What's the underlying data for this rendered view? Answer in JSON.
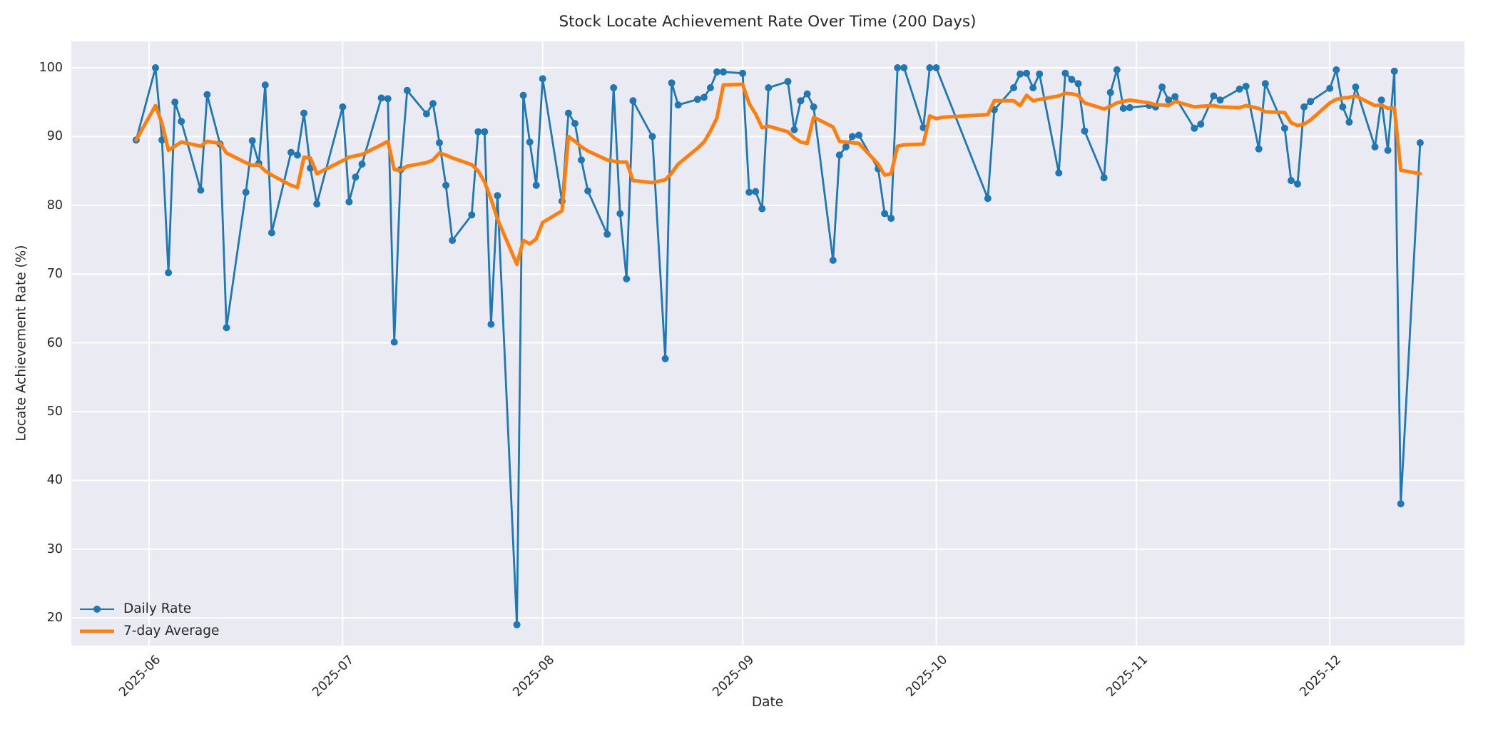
{
  "chart_data": {
    "type": "line",
    "title": "Stock Locate Achievement Rate Over Time (200 Days)",
    "xlabel": "Date",
    "ylabel": "Locate Achievement Rate (%)",
    "grid": true,
    "background_color": "#eaeaf2",
    "gridline_color": "#ffffff",
    "text_color": "#262626",
    "legend_position": "lower left",
    "ylim": [
      16,
      104
    ],
    "xlim_dates": [
      "2025-05-20",
      "2025-12-22"
    ],
    "y_ticks": [
      20,
      30,
      40,
      50,
      60,
      70,
      80,
      90,
      100
    ],
    "x_ticks": [
      {
        "label": "2025-06",
        "date": "2025-06-01"
      },
      {
        "label": "2025-07",
        "date": "2025-07-01"
      },
      {
        "label": "2025-08",
        "date": "2025-08-01"
      },
      {
        "label": "2025-09",
        "date": "2025-09-01"
      },
      {
        "label": "2025-10",
        "date": "2025-10-01"
      },
      {
        "label": "2025-11",
        "date": "2025-11-01"
      },
      {
        "label": "2025-12",
        "date": "2025-12-01"
      }
    ],
    "series": [
      {
        "name": "Daily Rate",
        "color": "#1f77b4",
        "linewidth": 2.8,
        "marker": "o",
        "marker_radius": 5,
        "points": [
          [
            "2025-05-30",
            89.5
          ],
          [
            "2025-06-02",
            100.0
          ],
          [
            "2025-06-03",
            89.5
          ],
          [
            "2025-06-04",
            70.2
          ],
          [
            "2025-06-05",
            95.0
          ],
          [
            "2025-06-06",
            92.2
          ],
          [
            "2025-06-09",
            82.2
          ],
          [
            "2025-06-10",
            96.1
          ],
          [
            "2025-06-12",
            88.9
          ],
          [
            "2025-06-13",
            62.2
          ],
          [
            "2025-06-16",
            81.9
          ],
          [
            "2025-06-17",
            89.4
          ],
          [
            "2025-06-18",
            86.1
          ],
          [
            "2025-06-19",
            97.5
          ],
          [
            "2025-06-20",
            76.0
          ],
          [
            "2025-06-23",
            87.7
          ],
          [
            "2025-06-24",
            87.3
          ],
          [
            "2025-06-25",
            93.4
          ],
          [
            "2025-06-26",
            85.4
          ],
          [
            "2025-06-27",
            80.2
          ],
          [
            "2025-07-01",
            94.3
          ],
          [
            "2025-07-02",
            80.5
          ],
          [
            "2025-07-03",
            84.1
          ],
          [
            "2025-07-04",
            86.0
          ],
          [
            "2025-07-07",
            95.6
          ],
          [
            "2025-07-08",
            95.5
          ],
          [
            "2025-07-09",
            60.1
          ],
          [
            "2025-07-10",
            85.2
          ],
          [
            "2025-07-11",
            96.7
          ],
          [
            "2025-07-14",
            93.3
          ],
          [
            "2025-07-15",
            94.8
          ],
          [
            "2025-07-16",
            89.1
          ],
          [
            "2025-07-17",
            82.9
          ],
          [
            "2025-07-18",
            74.9
          ],
          [
            "2025-07-21",
            78.6
          ],
          [
            "2025-07-22",
            90.7
          ],
          [
            "2025-07-23",
            90.7
          ],
          [
            "2025-07-24",
            62.7
          ],
          [
            "2025-07-25",
            81.4
          ],
          [
            "2025-07-28",
            19.0
          ],
          [
            "2025-07-29",
            96.0
          ],
          [
            "2025-07-30",
            89.2
          ],
          [
            "2025-07-31",
            82.9
          ],
          [
            "2025-08-01",
            98.4
          ],
          [
            "2025-08-04",
            80.6
          ],
          [
            "2025-08-05",
            93.4
          ],
          [
            "2025-08-06",
            91.9
          ],
          [
            "2025-08-07",
            86.6
          ],
          [
            "2025-08-08",
            82.1
          ],
          [
            "2025-08-11",
            75.8
          ],
          [
            "2025-08-12",
            97.1
          ],
          [
            "2025-08-13",
            78.8
          ],
          [
            "2025-08-14",
            69.3
          ],
          [
            "2025-08-15",
            95.2
          ],
          [
            "2025-08-18",
            90.0
          ],
          [
            "2025-08-20",
            57.7
          ],
          [
            "2025-08-21",
            97.8
          ],
          [
            "2025-08-22",
            94.6
          ],
          [
            "2025-08-25",
            95.4
          ],
          [
            "2025-08-26",
            95.7
          ],
          [
            "2025-08-27",
            97.1
          ],
          [
            "2025-08-28",
            99.4
          ],
          [
            "2025-08-29",
            99.4
          ],
          [
            "2025-09-01",
            99.2
          ],
          [
            "2025-09-02",
            81.9
          ],
          [
            "2025-09-03",
            82.0
          ],
          [
            "2025-09-04",
            79.5
          ],
          [
            "2025-09-05",
            97.1
          ],
          [
            "2025-09-08",
            98.0
          ],
          [
            "2025-09-09",
            91.0
          ],
          [
            "2025-09-10",
            95.2
          ],
          [
            "2025-09-11",
            96.2
          ],
          [
            "2025-09-12",
            94.3
          ],
          [
            "2025-09-15",
            72.0
          ],
          [
            "2025-09-16",
            87.3
          ],
          [
            "2025-09-17",
            88.5
          ],
          [
            "2025-09-18",
            90.0
          ],
          [
            "2025-09-19",
            90.2
          ],
          [
            "2025-09-22",
            85.3
          ],
          [
            "2025-09-23",
            78.8
          ],
          [
            "2025-09-24",
            78.1
          ],
          [
            "2025-09-25",
            100.0
          ],
          [
            "2025-09-26",
            100.0
          ],
          [
            "2025-09-29",
            91.3
          ],
          [
            "2025-09-30",
            100.0
          ],
          [
            "2025-10-01",
            100.0
          ],
          [
            "2025-10-09",
            81.0
          ],
          [
            "2025-10-10",
            93.9
          ],
          [
            "2025-10-13",
            97.1
          ],
          [
            "2025-10-14",
            99.1
          ],
          [
            "2025-10-15",
            99.2
          ],
          [
            "2025-10-16",
            97.1
          ],
          [
            "2025-10-17",
            99.1
          ],
          [
            "2025-10-20",
            84.7
          ],
          [
            "2025-10-21",
            99.2
          ],
          [
            "2025-10-22",
            98.3
          ],
          [
            "2025-10-23",
            97.7
          ],
          [
            "2025-10-24",
            90.8
          ],
          [
            "2025-10-27",
            84.0
          ],
          [
            "2025-10-28",
            96.4
          ],
          [
            "2025-10-29",
            99.7
          ],
          [
            "2025-10-30",
            94.1
          ],
          [
            "2025-10-31",
            94.2
          ],
          [
            "2025-11-03",
            94.5
          ],
          [
            "2025-11-04",
            94.3
          ],
          [
            "2025-11-05",
            97.2
          ],
          [
            "2025-11-06",
            95.3
          ],
          [
            "2025-11-07",
            95.8
          ],
          [
            "2025-11-10",
            91.2
          ],
          [
            "2025-11-11",
            91.8
          ],
          [
            "2025-11-13",
            95.9
          ],
          [
            "2025-11-14",
            95.3
          ],
          [
            "2025-11-17",
            96.9
          ],
          [
            "2025-11-18",
            97.3
          ],
          [
            "2025-11-20",
            88.2
          ],
          [
            "2025-11-21",
            97.7
          ],
          [
            "2025-11-24",
            91.2
          ],
          [
            "2025-11-25",
            83.6
          ],
          [
            "2025-11-26",
            83.1
          ],
          [
            "2025-11-27",
            94.3
          ],
          [
            "2025-11-28",
            95.1
          ],
          [
            "2025-12-01",
            97.0
          ],
          [
            "2025-12-02",
            99.7
          ],
          [
            "2025-12-03",
            94.3
          ],
          [
            "2025-12-04",
            92.1
          ],
          [
            "2025-12-05",
            97.2
          ],
          [
            "2025-12-08",
            88.5
          ],
          [
            "2025-12-09",
            95.3
          ],
          [
            "2025-12-10",
            88.0
          ],
          [
            "2025-12-11",
            99.5
          ],
          [
            "2025-12-12",
            36.6
          ],
          [
            "2025-12-15",
            89.1
          ]
        ]
      },
      {
        "name": "7-day Average",
        "color": "#ff7f0e",
        "linewidth": 5,
        "marker": null,
        "points": [
          [
            "2025-05-30",
            89.5
          ],
          [
            "2025-06-02",
            94.5
          ],
          [
            "2025-06-03",
            91.9
          ],
          [
            "2025-06-04",
            88.0
          ],
          [
            "2025-06-05",
            88.6
          ],
          [
            "2025-06-06",
            89.2
          ],
          [
            "2025-06-09",
            88.6
          ],
          [
            "2025-06-10",
            89.3
          ],
          [
            "2025-06-12",
            89.0
          ],
          [
            "2025-06-13",
            87.6
          ],
          [
            "2025-06-16",
            86.2
          ],
          [
            "2025-06-17",
            85.8
          ],
          [
            "2025-06-18",
            85.9
          ],
          [
            "2025-06-19",
            85.0
          ],
          [
            "2025-06-20",
            84.4
          ],
          [
            "2025-06-23",
            82.9
          ],
          [
            "2025-06-24",
            82.6
          ],
          [
            "2025-06-25",
            87.0
          ],
          [
            "2025-06-26",
            86.9
          ],
          [
            "2025-06-27",
            84.6
          ],
          [
            "2025-07-01",
            86.5
          ],
          [
            "2025-07-02",
            87.0
          ],
          [
            "2025-07-03",
            87.2
          ],
          [
            "2025-07-04",
            87.4
          ],
          [
            "2025-07-07",
            88.8
          ],
          [
            "2025-07-08",
            89.3
          ],
          [
            "2025-07-09",
            85.2
          ],
          [
            "2025-07-10",
            85.1
          ],
          [
            "2025-07-11",
            85.7
          ],
          [
            "2025-07-14",
            86.2
          ],
          [
            "2025-07-15",
            86.6
          ],
          [
            "2025-07-16",
            87.6
          ],
          [
            "2025-07-17",
            87.3
          ],
          [
            "2025-07-18",
            86.9
          ],
          [
            "2025-07-21",
            85.9
          ],
          [
            "2025-07-22",
            85.0
          ],
          [
            "2025-07-23",
            83.4
          ],
          [
            "2025-07-24",
            80.9
          ],
          [
            "2025-07-25",
            78.0
          ],
          [
            "2025-07-28",
            71.4
          ],
          [
            "2025-07-29",
            74.9
          ],
          [
            "2025-07-30",
            74.4
          ],
          [
            "2025-07-31",
            75.1
          ],
          [
            "2025-08-01",
            77.5
          ],
          [
            "2025-08-04",
            79.2
          ],
          [
            "2025-08-05",
            90.0
          ],
          [
            "2025-08-06",
            89.3
          ],
          [
            "2025-08-07",
            88.5
          ],
          [
            "2025-08-08",
            87.9
          ],
          [
            "2025-08-11",
            86.6
          ],
          [
            "2025-08-12",
            86.4
          ],
          [
            "2025-08-13",
            86.3
          ],
          [
            "2025-08-14",
            86.3
          ],
          [
            "2025-08-15",
            83.6
          ],
          [
            "2025-08-18",
            83.3
          ],
          [
            "2025-08-20",
            83.7
          ],
          [
            "2025-08-21",
            84.7
          ],
          [
            "2025-08-22",
            86.0
          ],
          [
            "2025-08-25",
            88.3
          ],
          [
            "2025-08-26",
            89.2
          ],
          [
            "2025-08-27",
            90.8
          ],
          [
            "2025-08-28",
            92.7
          ],
          [
            "2025-08-29",
            97.5
          ],
          [
            "2025-09-01",
            97.6
          ],
          [
            "2025-09-02",
            94.8
          ],
          [
            "2025-09-03",
            93.3
          ],
          [
            "2025-09-04",
            91.3
          ],
          [
            "2025-09-05",
            91.5
          ],
          [
            "2025-09-08",
            90.7
          ],
          [
            "2025-09-09",
            89.8
          ],
          [
            "2025-09-10",
            89.2
          ],
          [
            "2025-09-11",
            89.0
          ],
          [
            "2025-09-12",
            92.8
          ],
          [
            "2025-09-15",
            91.4
          ],
          [
            "2025-09-16",
            89.3
          ],
          [
            "2025-09-17",
            89.2
          ],
          [
            "2025-09-18",
            89.1
          ],
          [
            "2025-09-19",
            89.0
          ],
          [
            "2025-09-22",
            86.0
          ],
          [
            "2025-09-23",
            84.4
          ],
          [
            "2025-09-24",
            84.6
          ],
          [
            "2025-09-25",
            88.6
          ],
          [
            "2025-09-26",
            88.8
          ],
          [
            "2025-09-29",
            88.9
          ],
          [
            "2025-09-30",
            93.0
          ],
          [
            "2025-10-01",
            92.6
          ],
          [
            "2025-10-02",
            92.8
          ],
          [
            "2025-10-09",
            93.2
          ],
          [
            "2025-10-10",
            95.2
          ],
          [
            "2025-10-13",
            95.2
          ],
          [
            "2025-10-14",
            94.5
          ],
          [
            "2025-10-15",
            96.0
          ],
          [
            "2025-10-16",
            95.2
          ],
          [
            "2025-10-17",
            95.4
          ],
          [
            "2025-10-20",
            95.9
          ],
          [
            "2025-10-21",
            96.3
          ],
          [
            "2025-10-22",
            96.2
          ],
          [
            "2025-10-23",
            96.0
          ],
          [
            "2025-10-24",
            94.9
          ],
          [
            "2025-10-27",
            94.0
          ],
          [
            "2025-10-28",
            94.4
          ],
          [
            "2025-10-29",
            94.9
          ],
          [
            "2025-10-30",
            95.1
          ],
          [
            "2025-10-31",
            95.3
          ],
          [
            "2025-11-03",
            94.9
          ],
          [
            "2025-11-04",
            94.6
          ],
          [
            "2025-11-05",
            94.6
          ],
          [
            "2025-11-06",
            94.5
          ],
          [
            "2025-11-07",
            95.1
          ],
          [
            "2025-11-10",
            94.3
          ],
          [
            "2025-11-11",
            94.4
          ],
          [
            "2025-11-13",
            94.5
          ],
          [
            "2025-11-14",
            94.3
          ],
          [
            "2025-11-17",
            94.2
          ],
          [
            "2025-11-18",
            94.5
          ],
          [
            "2025-11-20",
            94.1
          ],
          [
            "2025-11-21",
            93.6
          ],
          [
            "2025-11-24",
            93.5
          ],
          [
            "2025-11-25",
            92.0
          ],
          [
            "2025-11-26",
            91.6
          ],
          [
            "2025-11-27",
            91.8
          ],
          [
            "2025-11-28",
            92.4
          ],
          [
            "2025-12-01",
            94.9
          ],
          [
            "2025-12-02",
            95.4
          ],
          [
            "2025-12-03",
            95.6
          ],
          [
            "2025-12-04",
            95.7
          ],
          [
            "2025-12-05",
            95.9
          ],
          [
            "2025-12-08",
            94.5
          ],
          [
            "2025-12-09",
            94.6
          ],
          [
            "2025-12-10",
            94.1
          ],
          [
            "2025-12-11",
            94.2
          ],
          [
            "2025-12-12",
            85.1
          ],
          [
            "2025-12-15",
            84.6
          ]
        ]
      }
    ]
  }
}
